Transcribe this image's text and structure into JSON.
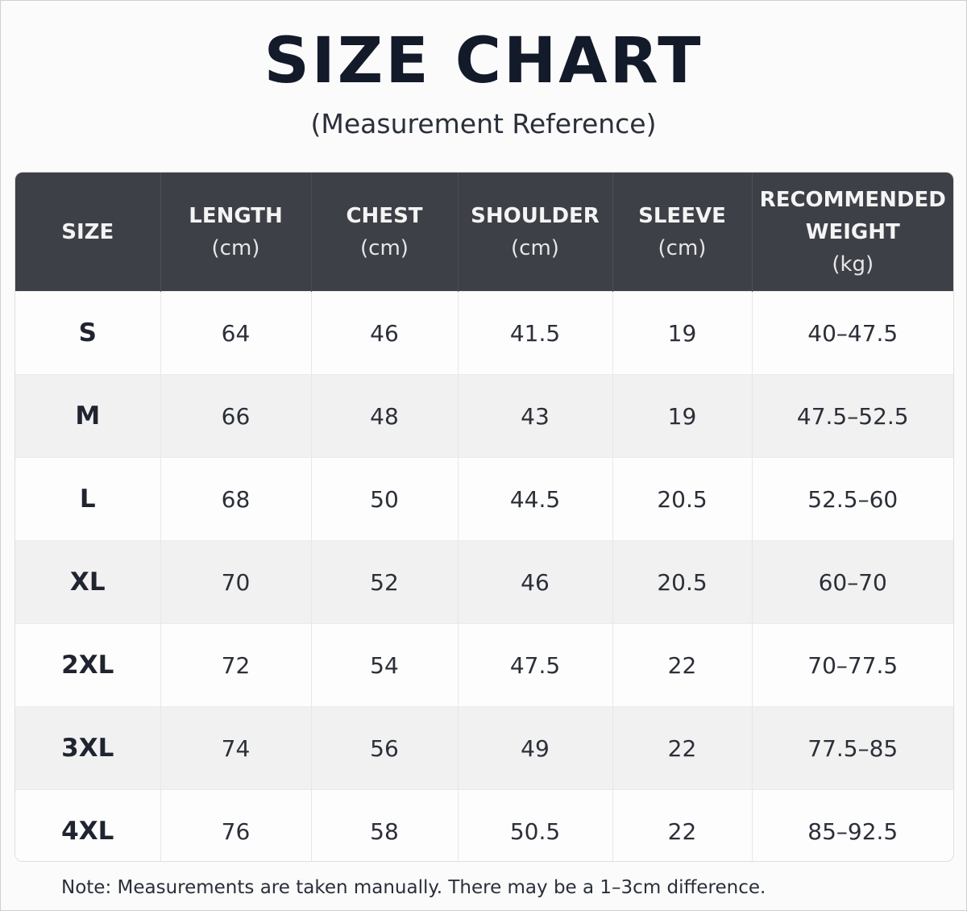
{
  "title": "SIZE CHART",
  "subtitle": "(Measurement Reference)",
  "headers": [
    {
      "lines": [
        "SIZE"
      ],
      "unit": ""
    },
    {
      "lines": [
        "LENGTH"
      ],
      "unit": "(cm)"
    },
    {
      "lines": [
        "CHEST"
      ],
      "unit": "(cm)"
    },
    {
      "lines": [
        "SHOULDER"
      ],
      "unit": "(cm)"
    },
    {
      "lines": [
        "SLEEVE"
      ],
      "unit": "(cm)"
    },
    {
      "lines": [
        "RECOMMENDED",
        "WEIGHT"
      ],
      "unit": "(kg)"
    }
  ],
  "rows": [
    [
      "S",
      "64",
      "46",
      "41.5",
      "19",
      "40–47.5"
    ],
    [
      "M",
      "66",
      "48",
      "43",
      "19",
      "47.5–52.5"
    ],
    [
      "L",
      "68",
      "50",
      "44.5",
      "20.5",
      "52.5–60"
    ],
    [
      "XL",
      "70",
      "52",
      "46",
      "20.5",
      "60–70"
    ],
    [
      "2XL",
      "72",
      "54",
      "47.5",
      "22",
      "70–77.5"
    ],
    [
      "3XL",
      "74",
      "56",
      "49",
      "22",
      "77.5–85"
    ],
    [
      "4XL",
      "76",
      "58",
      "50.5",
      "22",
      "85–92.5"
    ]
  ],
  "note": "Note: Measurements are taken manually. There may be a 1–3cm difference.",
  "colors": {
    "header_bg": "#3d4047",
    "header_text": "#f4f4f4",
    "stripe": "#f1f1f1",
    "title": "#131a2a"
  }
}
